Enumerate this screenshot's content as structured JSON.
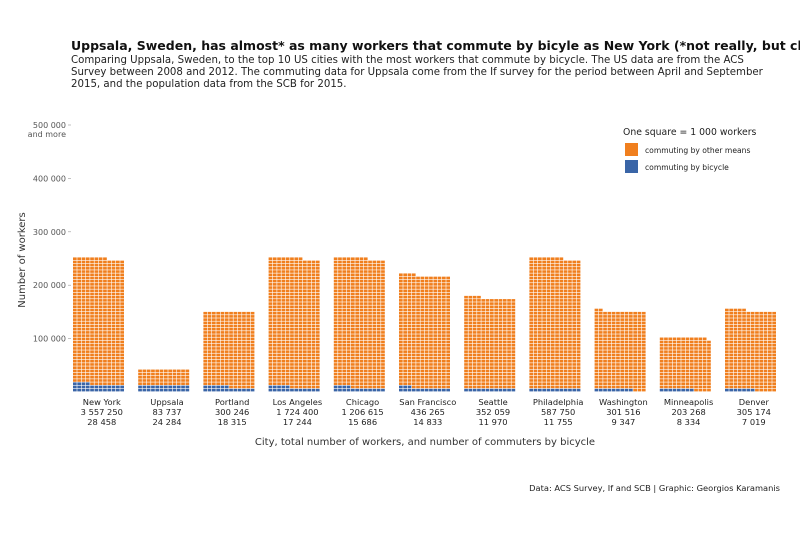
{
  "chart_data": {
    "type": "waffle",
    "title": "Uppsala, Sweden, has almost* as many workers that commute by bicyle as New York (*not really, but close)",
    "subtitle": "Comparing Uppsala, Sweden, to the top 10 US cities with the most workers that commute by bicycle. The US data are from the ACS Survey between 2008 and 2012. The commuting data for Uppsala come from the If survey for the period between April and September 2015, and the population data from the SCB for 2015.",
    "xlabel": "City, total number of workers, and number of commuters by bicycle",
    "ylabel": "Number of workers",
    "yticks": [
      {
        "value": 100000,
        "label": "100 000"
      },
      {
        "value": 200000,
        "label": "200 000"
      },
      {
        "value": 300000,
        "label": "300 000"
      },
      {
        "value": 400000,
        "label": "400 000"
      },
      {
        "value": 500000,
        "label": "500 000",
        "label2": "and more"
      }
    ],
    "ylim": [
      0,
      500000
    ],
    "unit": 1000,
    "legend": {
      "title": "One square = 1 000 workers",
      "position": "top-right",
      "items": [
        {
          "key": "other",
          "label": "commuting by other means",
          "color": "#F07F1E"
        },
        {
          "key": "bicycle",
          "label": "commuting by bicycle",
          "color": "#3A65A7"
        }
      ]
    },
    "categories": [
      {
        "city": "New York",
        "total": 3557250,
        "total_label": "3 557 250",
        "bicycle": 28458,
        "bicycle_label": "28 458"
      },
      {
        "city": "Uppsala",
        "total": 83737,
        "total_label": "83 737",
        "bicycle": 24284,
        "bicycle_label": "24 284"
      },
      {
        "city": "Portland",
        "total": 300246,
        "total_label": "300 246",
        "bicycle": 18315,
        "bicycle_label": "18 315"
      },
      {
        "city": "Los Angeles",
        "total": 1724400,
        "total_label": "1 724 400",
        "bicycle": 17244,
        "bicycle_label": "17 244"
      },
      {
        "city": "Chicago",
        "total": 1206615,
        "total_label": "1 206 615",
        "bicycle": 15686,
        "bicycle_label": "15 686"
      },
      {
        "city": "San Francisco",
        "total": 436265,
        "total_label": "436 265",
        "bicycle": 14833,
        "bicycle_label": "14 833"
      },
      {
        "city": "Seattle",
        "total": 352059,
        "total_label": "352 059",
        "bicycle": 11970,
        "bicycle_label": "11 970"
      },
      {
        "city": "Philadelphia",
        "total": 587750,
        "total_label": "587 750",
        "bicycle": 11755,
        "bicycle_label": "11 755"
      },
      {
        "city": "Washington",
        "total": 301516,
        "total_label": "301 516",
        "bicycle": 9347,
        "bicycle_label": "9 347"
      },
      {
        "city": "Minneapolis",
        "total": 203268,
        "total_label": "203 268",
        "bicycle": 8334,
        "bicycle_label": "8 334"
      },
      {
        "city": "Denver",
        "total": 305174,
        "total_label": "305 174",
        "bicycle": 7019,
        "bicycle_label": "7 019"
      }
    ],
    "caption": "Data: ACS Survey, If and SCB | Graphic: Georgios Karamanis"
  }
}
